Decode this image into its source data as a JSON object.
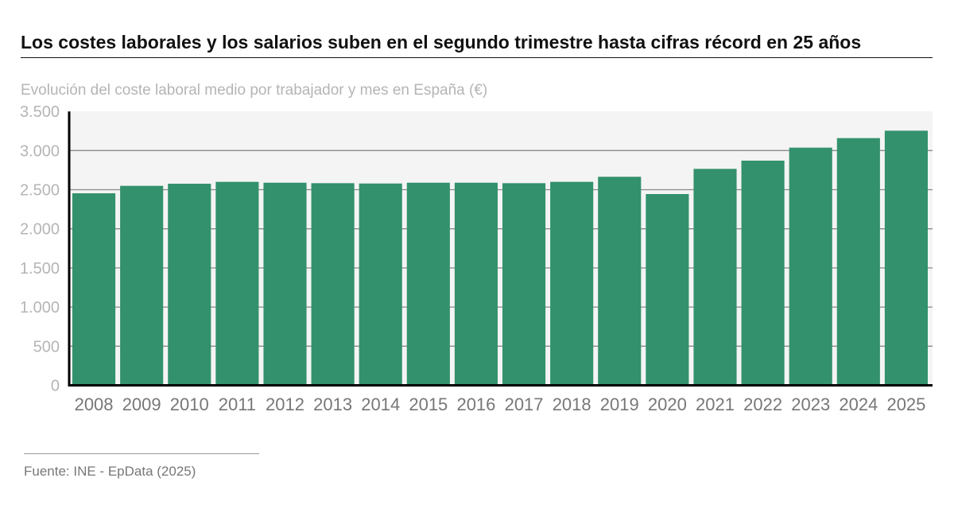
{
  "title": "Los costes laborales y los salarios suben en el segundo trimestre hasta cifras récord en 25 años",
  "subtitle": "Evolución del coste laboral medio por trabajador y mes en España (€)",
  "source": "Fuente: INE - EpData (2025)",
  "chart_data": {
    "type": "bar",
    "categories": [
      "2008",
      "2009",
      "2010",
      "2011",
      "2012",
      "2013",
      "2014",
      "2015",
      "2016",
      "2017",
      "2018",
      "2019",
      "2020",
      "2021",
      "2022",
      "2023",
      "2024",
      "2025"
    ],
    "values": [
      2454,
      2549,
      2576,
      2600,
      2589,
      2583,
      2579,
      2589,
      2589,
      2583,
      2600,
      2665,
      2444,
      2766,
      2871,
      3037,
      3159,
      3254
    ],
    "ylim": [
      0,
      3500
    ],
    "yticks": [
      0,
      500,
      1000,
      1500,
      2000,
      2500,
      3000,
      3500
    ],
    "ytick_labels": [
      "0",
      "500",
      "1.000",
      "1.500",
      "2.000",
      "2.500",
      "3.000",
      "3.500"
    ],
    "grid": true,
    "colors": {
      "bar": "#33916d",
      "plot_bg": "#f4f4f4",
      "grid": "#8a8a8a"
    }
  }
}
